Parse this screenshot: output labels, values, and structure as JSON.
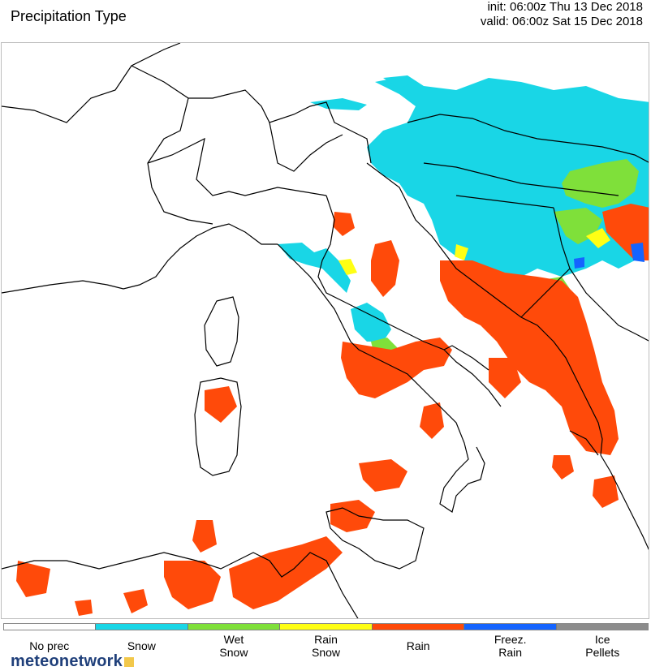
{
  "header": {
    "title": "Precipitation Type",
    "init": "init: 06:00z Thu 13 Dec 2018",
    "valid": "valid: 06:00z Sat 15 Dec 2018"
  },
  "legend": {
    "items": [
      {
        "label": "No prec",
        "color": "#ffffff"
      },
      {
        "label": "Snow",
        "color": "#19d6e6"
      },
      {
        "label": "Wet\nSnow",
        "color": "#7fe03a"
      },
      {
        "label": "Rain\nSnow",
        "color": "#ffff14"
      },
      {
        "label": "Rain",
        "color": "#ff4a0a"
      },
      {
        "label": "Freez.\nRain",
        "color": "#1464ff"
      },
      {
        "label": "Ice\nPellets",
        "color": "#8c8c8c"
      }
    ]
  },
  "brand": {
    "name": "meteonetwork"
  },
  "colors": {
    "snow": "#19d6e6",
    "wet_snow": "#7fe03a",
    "rain_snow": "#ffff14",
    "rain": "#ff4a0a",
    "freezing_rain": "#1464ff",
    "border": "#000000"
  }
}
